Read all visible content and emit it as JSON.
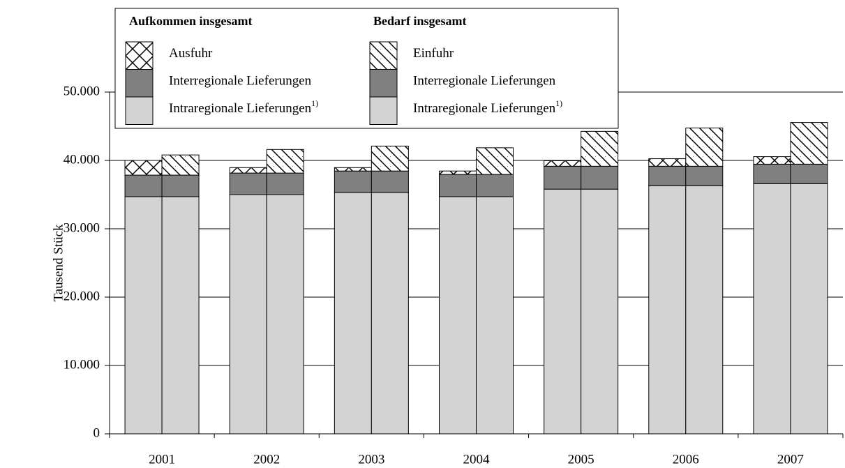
{
  "chart_data": {
    "type": "grouped_stacked_bar",
    "y_label": "Tausend Stück",
    "categories": [
      "2001",
      "2002",
      "2003",
      "2004",
      "2005",
      "2006",
      "2007"
    ],
    "ylim": [
      0,
      50000
    ],
    "yticks": [
      0,
      {
        "value": 10000,
        "label": "10.000"
      },
      {
        "value": 20000,
        "label": "20.000"
      },
      {
        "value": 30000,
        "label": "30.000"
      },
      {
        "value": 40000,
        "label": "40.000"
      },
      {
        "value": 50000,
        "label": "50.000"
      }
    ],
    "grid": true,
    "groups": [
      {
        "name": "Aufkommen insgesamt",
        "series": [
          {
            "name": "Intraregionale Lieferungen",
            "note": "1)",
            "color": "#d3d3d3",
            "values": [
              34700,
              35000,
              35300,
              34700,
              35800,
              36300,
              36600
            ]
          },
          {
            "name": "Interregionale Lieferungen",
            "color": "#808080",
            "values": [
              3150,
              3150,
              3150,
              3250,
              3350,
              2850,
              2850
            ]
          },
          {
            "name": "Ausfuhr",
            "color": "#000000",
            "pattern": "crosshatch",
            "values": [
              2150,
              800,
              500,
              500,
              800,
              1100,
              1100
            ]
          }
        ]
      },
      {
        "name": "Bedarf insgesamt",
        "series": [
          {
            "name": "Intraregionale Lieferungen",
            "note": "1)",
            "color": "#d3d3d3",
            "values": [
              34700,
              35000,
              35300,
              34700,
              35800,
              36300,
              36600
            ]
          },
          {
            "name": "Interregionale Lieferungen",
            "color": "#808080",
            "values": [
              3150,
              3150,
              3150,
              3250,
              3350,
              2850,
              2850
            ]
          },
          {
            "name": "Einfuhr",
            "color": "#000000",
            "pattern": "diagonal",
            "values": [
              2950,
              3450,
              3650,
              3900,
              5100,
              5600,
              6100
            ]
          }
        ]
      }
    ]
  }
}
